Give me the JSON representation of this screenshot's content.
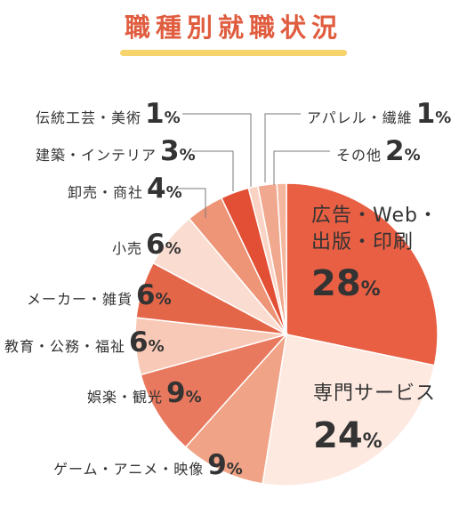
{
  "title": "職種別就職状況",
  "colors": {
    "title": "#e05c3f",
    "title_bar": "#f6d36b",
    "leader": "#7a7a7a"
  },
  "chart_data": {
    "type": "pie",
    "title": "職種別就職状況",
    "unit": "%",
    "slices": [
      {
        "label": "広告・Web・出版・印刷",
        "lines": [
          "広告・Web・",
          "出版・印刷"
        ],
        "value": 28,
        "color": "#e85f43"
      },
      {
        "label": "専門サービス",
        "lines": [
          "専門サービス"
        ],
        "value": 24,
        "color": "#fde9e0"
      },
      {
        "label": "ゲーム・アニメ・映像",
        "lines": [
          "ゲーム・アニメ・映像"
        ],
        "value": 9,
        "color": "#f0a386"
      },
      {
        "label": "娯楽・観光",
        "lines": [
          "娯楽・観光"
        ],
        "value": 9,
        "color": "#e8785e"
      },
      {
        "label": "教育・公務・福祉",
        "lines": [
          "教育・公務・福祉"
        ],
        "value": 6,
        "color": "#f8c9b6"
      },
      {
        "label": "メーカー・雑貨",
        "lines": [
          "メーカー・雑貨"
        ],
        "value": 6,
        "color": "#e46649"
      },
      {
        "label": "小売",
        "lines": [
          "小売"
        ],
        "value": 6,
        "color": "#fbdcd0"
      },
      {
        "label": "卸売・商社",
        "lines": [
          "卸売・商社"
        ],
        "value": 4,
        "color": "#ee9477"
      },
      {
        "label": "建築・インテリア",
        "lines": [
          "建築・インテリア"
        ],
        "value": 3,
        "color": "#e24f35"
      },
      {
        "label": "伝統工芸・美術",
        "lines": [
          "伝統工芸・美術"
        ],
        "value": 1,
        "color": "#fad3c4"
      },
      {
        "label": "その他",
        "lines": [
          "その他"
        ],
        "value": 2,
        "color": "#f0a88e"
      },
      {
        "label": "アパレル・繊維",
        "lines": [
          "アパレル・繊維"
        ],
        "value": 1,
        "color": "#f5b69e"
      }
    ]
  }
}
